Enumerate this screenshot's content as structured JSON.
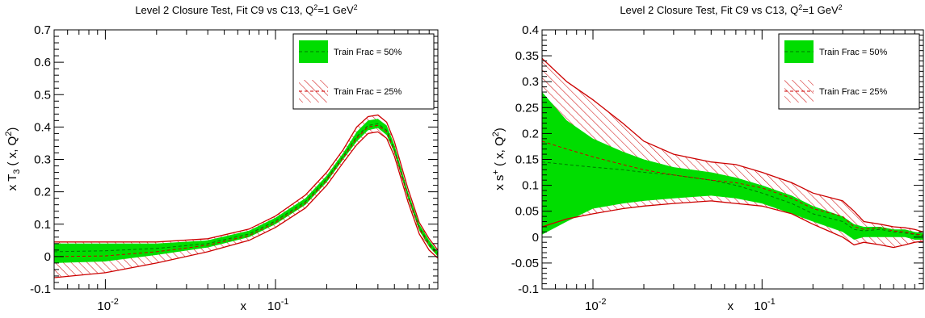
{
  "colors": {
    "band50": "#00dd00",
    "hatch25": "#cc0000",
    "frame": "#000000"
  },
  "chart_data": [
    {
      "type": "line",
      "title_main": "Level 2 Closure Test, Fit C9 vs C13,  Q",
      "title_sup1": "2",
      "title_tail": "=1 GeV",
      "title_sup2": "2",
      "ylabel": "x T3 ( x, Q2)",
      "ylabel_parts": {
        "pre": "x T",
        "sub": "3",
        "mid": " ( x, Q",
        "sup": "2",
        "post": ")"
      },
      "xlabel": "x",
      "xscale": "log",
      "xlim": [
        0.005,
        0.9
      ],
      "ylim": [
        -0.1,
        0.7
      ],
      "yticks": [
        "-0.1",
        "0",
        "0.1",
        "0.2",
        "0.3",
        "0.4",
        "0.5",
        "0.6",
        "0.7"
      ],
      "yticks_values": [
        -0.1,
        0,
        0.1,
        0.2,
        0.3,
        0.4,
        0.5,
        0.6,
        0.7
      ],
      "xticks": [
        {
          "base": "10",
          "exp": "-2",
          "value": 0.01
        },
        {
          "base": "10",
          "exp": "-1",
          "value": 0.1
        }
      ],
      "legend_position": "top-right",
      "x": [
        0.005,
        0.01,
        0.02,
        0.04,
        0.07,
        0.1,
        0.15,
        0.2,
        0.25,
        0.3,
        0.35,
        0.4,
        0.45,
        0.5,
        0.6,
        0.7,
        0.8,
        0.9
      ],
      "series": [
        {
          "name": "Train Frac = 50%",
          "style": "solid-band",
          "central": [
            0.015,
            0.018,
            0.025,
            0.04,
            0.07,
            0.11,
            0.17,
            0.24,
            0.31,
            0.37,
            0.405,
            0.41,
            0.39,
            0.33,
            0.19,
            0.09,
            0.04,
            0.01
          ],
          "lower": [
            -0.02,
            -0.015,
            0.005,
            0.028,
            0.06,
            0.1,
            0.16,
            0.23,
            0.3,
            0.355,
            0.39,
            0.397,
            0.375,
            0.32,
            0.18,
            0.08,
            0.03,
            0.0
          ],
          "upper": [
            0.04,
            0.04,
            0.04,
            0.05,
            0.08,
            0.12,
            0.18,
            0.25,
            0.32,
            0.385,
            0.42,
            0.425,
            0.405,
            0.345,
            0.2,
            0.1,
            0.05,
            0.015
          ]
        },
        {
          "name": "Train Frac = 25%",
          "style": "hatched-band",
          "central": [
            0.0,
            0.002,
            0.015,
            0.035,
            0.065,
            0.105,
            0.165,
            0.235,
            0.305,
            0.365,
            0.4,
            0.405,
            0.385,
            0.325,
            0.185,
            0.085,
            0.035,
            0.005
          ],
          "lower": [
            -0.065,
            -0.05,
            -0.02,
            0.015,
            0.05,
            0.09,
            0.15,
            0.22,
            0.29,
            0.345,
            0.38,
            0.385,
            0.365,
            0.31,
            0.17,
            0.07,
            0.02,
            -0.005
          ],
          "upper": [
            0.045,
            0.045,
            0.045,
            0.055,
            0.085,
            0.125,
            0.19,
            0.26,
            0.33,
            0.4,
            0.432,
            0.437,
            0.415,
            0.355,
            0.21,
            0.105,
            0.055,
            0.02
          ]
        }
      ]
    },
    {
      "type": "line",
      "title_main": "Level 2 Closure Test, Fit C9 vs C13,  Q",
      "title_sup1": "2",
      "title_tail": "=1 GeV",
      "title_sup2": "2",
      "ylabel": "x s+ ( x, Q2)",
      "ylabel_parts": {
        "pre": "x s",
        "supPlus": "+",
        "mid": " ( x, Q",
        "sup": "2",
        "post": ")"
      },
      "xlabel": "x",
      "xscale": "log",
      "xlim": [
        0.005,
        0.9
      ],
      "ylim": [
        -0.1,
        0.4
      ],
      "yticks": [
        "-0.1",
        "-0.05",
        "0",
        "0.05",
        "0.1",
        "0.15",
        "0.2",
        "0.25",
        "0.3",
        "0.35",
        "0.4"
      ],
      "yticks_values": [
        -0.1,
        -0.05,
        0,
        0.05,
        0.1,
        0.15,
        0.2,
        0.25,
        0.3,
        0.35,
        0.4
      ],
      "xticks": [
        {
          "base": "10",
          "exp": "-2",
          "value": 0.01
        },
        {
          "base": "10",
          "exp": "-1",
          "value": 0.1
        }
      ],
      "legend_position": "top-right",
      "x": [
        0.005,
        0.007,
        0.01,
        0.015,
        0.02,
        0.03,
        0.05,
        0.07,
        0.1,
        0.15,
        0.2,
        0.3,
        0.35,
        0.4,
        0.5,
        0.6,
        0.7,
        0.8,
        0.9
      ],
      "series": [
        {
          "name": "Train Frac = 50%",
          "style": "solid-band",
          "central": [
            0.145,
            0.14,
            0.135,
            0.13,
            0.125,
            0.12,
            0.11,
            0.1,
            0.085,
            0.065,
            0.045,
            0.03,
            0.015,
            0.012,
            0.015,
            0.01,
            0.008,
            0.005,
            0.003
          ],
          "lower": [
            0.005,
            0.03,
            0.055,
            0.065,
            0.07,
            0.075,
            0.08,
            0.075,
            0.065,
            0.045,
            0.03,
            0.01,
            -0.005,
            0.0,
            0.0,
            0.0,
            0.0,
            -0.005,
            -0.005
          ],
          "upper": [
            0.28,
            0.225,
            0.19,
            0.165,
            0.15,
            0.135,
            0.125,
            0.115,
            0.1,
            0.08,
            0.06,
            0.04,
            0.025,
            0.02,
            0.02,
            0.015,
            0.015,
            0.01,
            0.008
          ]
        },
        {
          "name": "Train Frac = 25%",
          "style": "hatched-band",
          "central": [
            0.185,
            0.17,
            0.155,
            0.14,
            0.13,
            0.12,
            0.11,
            0.105,
            0.095,
            0.075,
            0.055,
            0.04,
            0.02,
            0.015,
            0.018,
            0.012,
            0.01,
            0.006,
            0.004
          ],
          "lower": [
            0.02,
            0.035,
            0.045,
            0.055,
            0.06,
            0.065,
            0.07,
            0.065,
            0.06,
            0.045,
            0.025,
            0.0,
            -0.015,
            -0.01,
            -0.015,
            -0.02,
            -0.015,
            -0.01,
            -0.008
          ],
          "upper": [
            0.345,
            0.3,
            0.265,
            0.22,
            0.185,
            0.16,
            0.145,
            0.14,
            0.125,
            0.105,
            0.085,
            0.07,
            0.05,
            0.03,
            0.025,
            0.02,
            0.018,
            0.015,
            0.01
          ]
        }
      ]
    }
  ]
}
